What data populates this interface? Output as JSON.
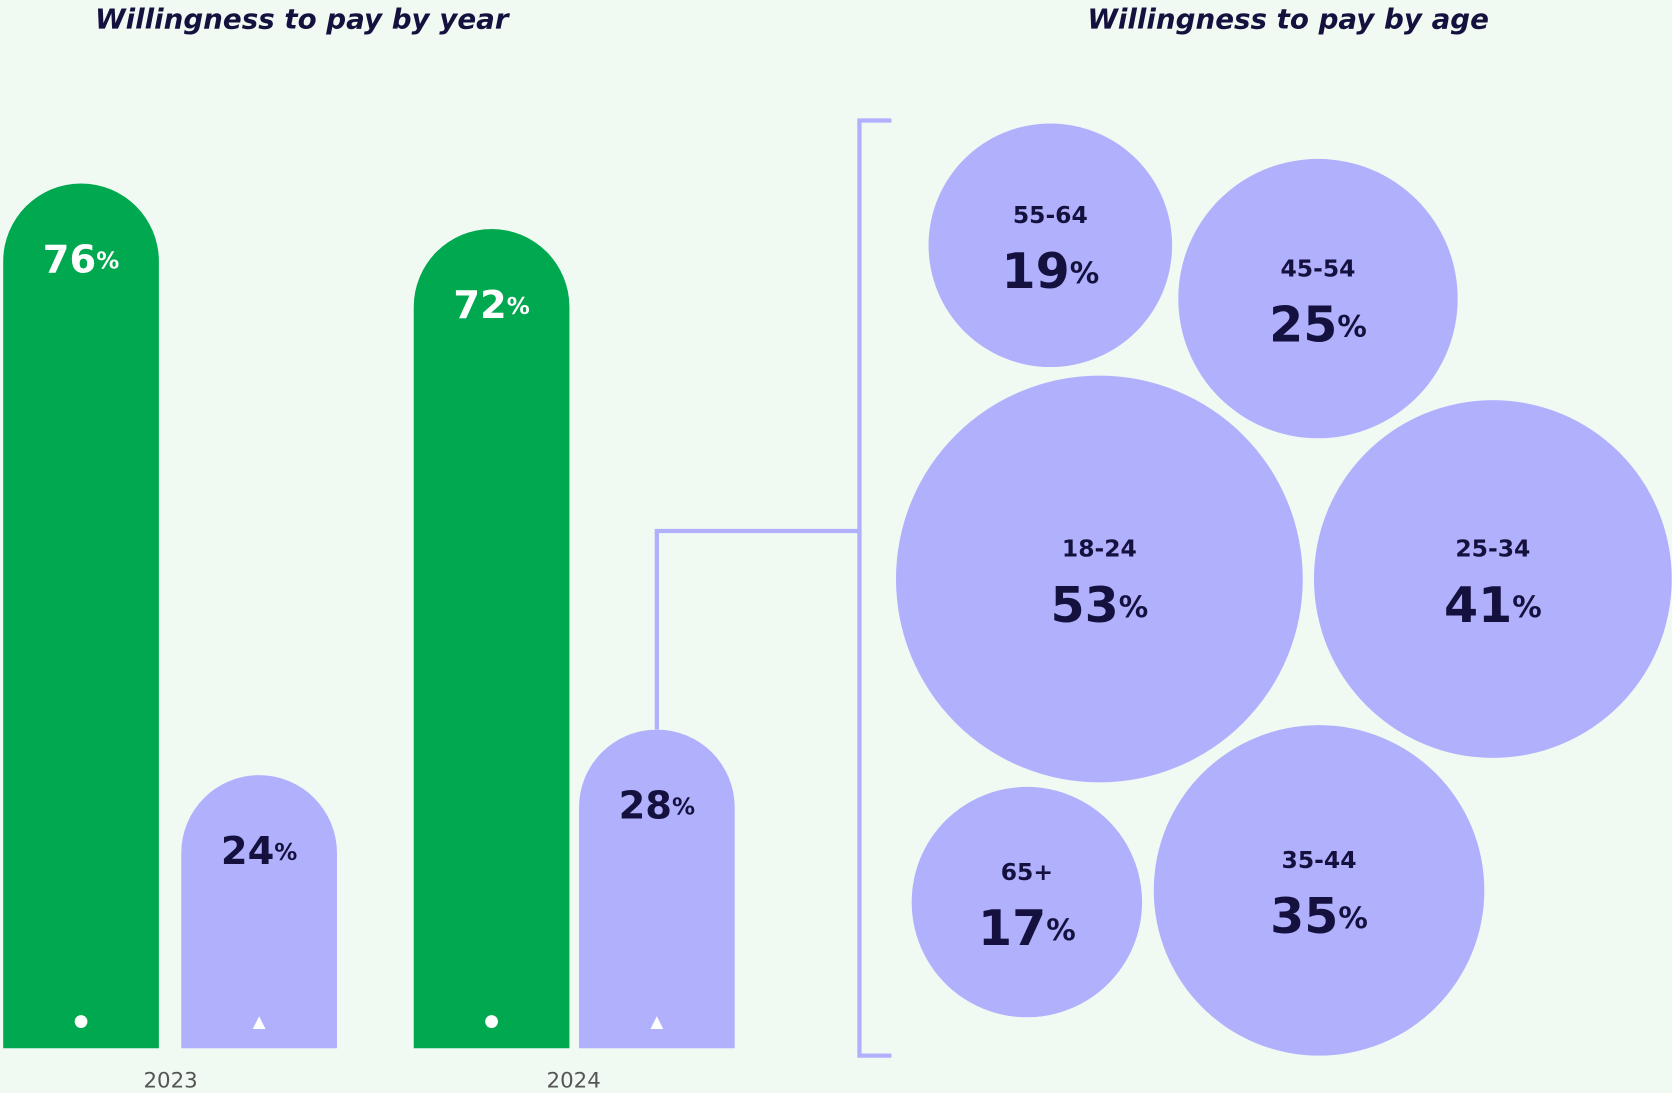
{
  "chart_data": [
    {
      "type": "bar",
      "title": "Willingness to pay by year",
      "categories": [
        "2023",
        "2024"
      ],
      "series": [
        {
          "color": "#00a84f",
          "values": [
            76,
            72
          ],
          "value_labels": [
            "76%",
            "72%"
          ]
        },
        {
          "color": "#b0b0fd",
          "values": [
            24,
            28
          ],
          "value_labels": [
            "24%",
            "28%"
          ]
        }
      ]
    },
    {
      "type": "bubble",
      "title": "Willingness to pay by age",
      "categories": [
        "55-64",
        "45-54",
        "18-24",
        "25-34",
        "65+",
        "35-44"
      ],
      "values": [
        19,
        25,
        53,
        41,
        17,
        35
      ],
      "value_labels": [
        "19%",
        "25%",
        "53%",
        "41%",
        "17%",
        "35%"
      ],
      "color": "#b0b0fd"
    }
  ]
}
